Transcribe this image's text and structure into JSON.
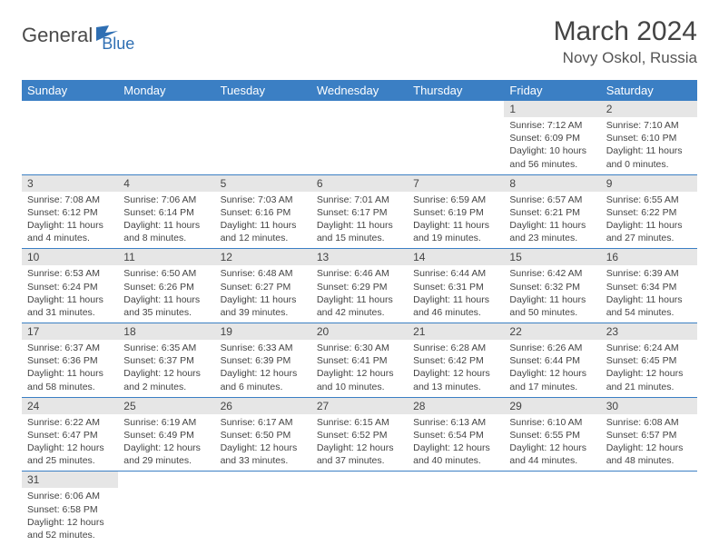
{
  "logo": {
    "text1": "General",
    "text2": "Blue",
    "color1": "#5a5a5a",
    "color2": "#2f6fb3"
  },
  "title": "March 2024",
  "location": "Novy Oskol, Russia",
  "weekdays": [
    "Sunday",
    "Monday",
    "Tuesday",
    "Wednesday",
    "Thursday",
    "Friday",
    "Saturday"
  ],
  "colors": {
    "header_bg": "#3b7fc4",
    "header_fg": "#ffffff",
    "daynum_bg": "#e6e6e6",
    "border": "#3b7fc4",
    "text": "#444444"
  },
  "fonts": {
    "month_title_size": 30,
    "location_size": 17,
    "weekday_size": 13,
    "daynum_size": 12,
    "body_size": 10.5
  },
  "weeks": [
    [
      null,
      null,
      null,
      null,
      null,
      {
        "n": "1",
        "sr": "7:12 AM",
        "ss": "6:09 PM",
        "dl": "10 hours and 56 minutes."
      },
      {
        "n": "2",
        "sr": "7:10 AM",
        "ss": "6:10 PM",
        "dl": "11 hours and 0 minutes."
      }
    ],
    [
      {
        "n": "3",
        "sr": "7:08 AM",
        "ss": "6:12 PM",
        "dl": "11 hours and 4 minutes."
      },
      {
        "n": "4",
        "sr": "7:06 AM",
        "ss": "6:14 PM",
        "dl": "11 hours and 8 minutes."
      },
      {
        "n": "5",
        "sr": "7:03 AM",
        "ss": "6:16 PM",
        "dl": "11 hours and 12 minutes."
      },
      {
        "n": "6",
        "sr": "7:01 AM",
        "ss": "6:17 PM",
        "dl": "11 hours and 15 minutes."
      },
      {
        "n": "7",
        "sr": "6:59 AM",
        "ss": "6:19 PM",
        "dl": "11 hours and 19 minutes."
      },
      {
        "n": "8",
        "sr": "6:57 AM",
        "ss": "6:21 PM",
        "dl": "11 hours and 23 minutes."
      },
      {
        "n": "9",
        "sr": "6:55 AM",
        "ss": "6:22 PM",
        "dl": "11 hours and 27 minutes."
      }
    ],
    [
      {
        "n": "10",
        "sr": "6:53 AM",
        "ss": "6:24 PM",
        "dl": "11 hours and 31 minutes."
      },
      {
        "n": "11",
        "sr": "6:50 AM",
        "ss": "6:26 PM",
        "dl": "11 hours and 35 minutes."
      },
      {
        "n": "12",
        "sr": "6:48 AM",
        "ss": "6:27 PM",
        "dl": "11 hours and 39 minutes."
      },
      {
        "n": "13",
        "sr": "6:46 AM",
        "ss": "6:29 PM",
        "dl": "11 hours and 42 minutes."
      },
      {
        "n": "14",
        "sr": "6:44 AM",
        "ss": "6:31 PM",
        "dl": "11 hours and 46 minutes."
      },
      {
        "n": "15",
        "sr": "6:42 AM",
        "ss": "6:32 PM",
        "dl": "11 hours and 50 minutes."
      },
      {
        "n": "16",
        "sr": "6:39 AM",
        "ss": "6:34 PM",
        "dl": "11 hours and 54 minutes."
      }
    ],
    [
      {
        "n": "17",
        "sr": "6:37 AM",
        "ss": "6:36 PM",
        "dl": "11 hours and 58 minutes."
      },
      {
        "n": "18",
        "sr": "6:35 AM",
        "ss": "6:37 PM",
        "dl": "12 hours and 2 minutes."
      },
      {
        "n": "19",
        "sr": "6:33 AM",
        "ss": "6:39 PM",
        "dl": "12 hours and 6 minutes."
      },
      {
        "n": "20",
        "sr": "6:30 AM",
        "ss": "6:41 PM",
        "dl": "12 hours and 10 minutes."
      },
      {
        "n": "21",
        "sr": "6:28 AM",
        "ss": "6:42 PM",
        "dl": "12 hours and 13 minutes."
      },
      {
        "n": "22",
        "sr": "6:26 AM",
        "ss": "6:44 PM",
        "dl": "12 hours and 17 minutes."
      },
      {
        "n": "23",
        "sr": "6:24 AM",
        "ss": "6:45 PM",
        "dl": "12 hours and 21 minutes."
      }
    ],
    [
      {
        "n": "24",
        "sr": "6:22 AM",
        "ss": "6:47 PM",
        "dl": "12 hours and 25 minutes."
      },
      {
        "n": "25",
        "sr": "6:19 AM",
        "ss": "6:49 PM",
        "dl": "12 hours and 29 minutes."
      },
      {
        "n": "26",
        "sr": "6:17 AM",
        "ss": "6:50 PM",
        "dl": "12 hours and 33 minutes."
      },
      {
        "n": "27",
        "sr": "6:15 AM",
        "ss": "6:52 PM",
        "dl": "12 hours and 37 minutes."
      },
      {
        "n": "28",
        "sr": "6:13 AM",
        "ss": "6:54 PM",
        "dl": "12 hours and 40 minutes."
      },
      {
        "n": "29",
        "sr": "6:10 AM",
        "ss": "6:55 PM",
        "dl": "12 hours and 44 minutes."
      },
      {
        "n": "30",
        "sr": "6:08 AM",
        "ss": "6:57 PM",
        "dl": "12 hours and 48 minutes."
      }
    ],
    [
      {
        "n": "31",
        "sr": "6:06 AM",
        "ss": "6:58 PM",
        "dl": "12 hours and 52 minutes."
      },
      null,
      null,
      null,
      null,
      null,
      null
    ]
  ],
  "labels": {
    "sunrise": "Sunrise:",
    "sunset": "Sunset:",
    "daylight": "Daylight:"
  }
}
